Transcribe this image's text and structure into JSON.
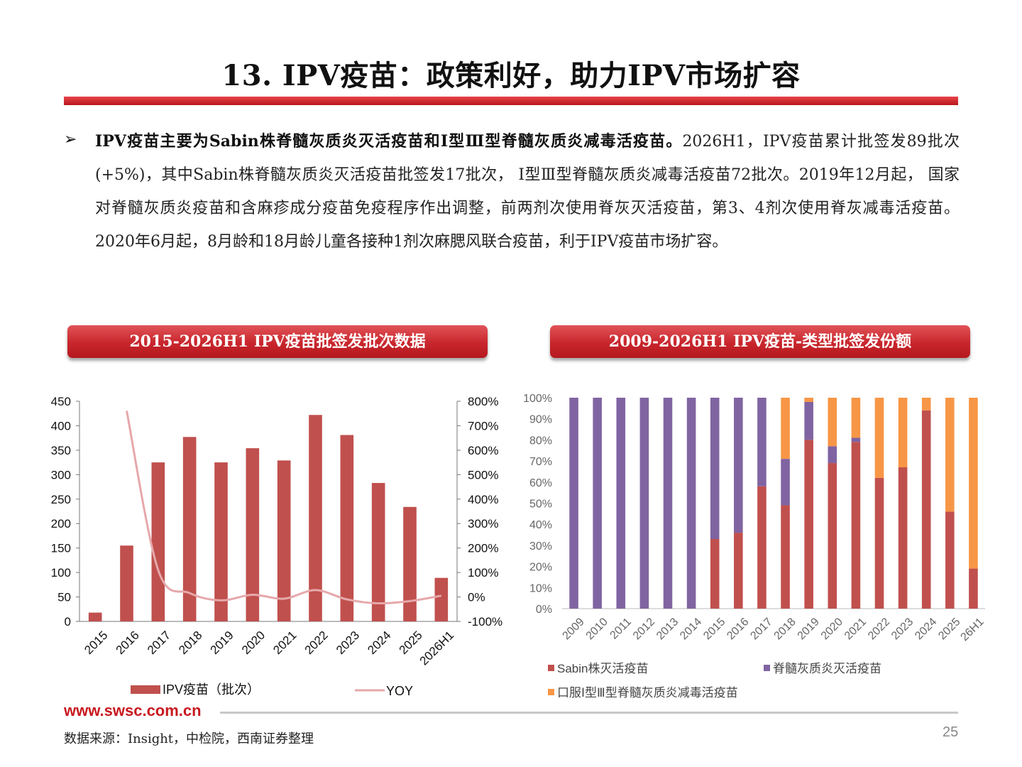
{
  "title": "13. IPV疫苗：政策利好，助力IPV市场扩容",
  "bullet": {
    "bold": "IPV疫苗主要为Sabin株脊髓灰质炎灭活疫苗和Ⅰ型Ⅲ型脊髓灰质炎减毒活疫苗。",
    "text": "2026H1，IPV疫苗累计批签发89批次(+5%)，其中Sabin株脊髓灰质炎灭活疫苗批签发17批次， Ⅰ型Ⅲ型脊髓灰质炎减毒活疫苗72批次。2019年12月起， 国家对脊髓灰质炎疫苗和含麻疹成分疫苗免疫程序作出调整，前两剂次使用脊灰灭活疫苗，第3、4剂次使用脊灰减毒活疫苗。2020年6月起，8月龄和18月龄儿童各接种1剂次麻腮风联合疫苗，利于IPV疫苗市场扩容。"
  },
  "left_header": "2015-2026H1 IPV疫苗批签发批次数据",
  "right_header": "2009-2026H1 IPV疫苗-类型批签发份额",
  "chart_data": [
    {
      "type": "bar",
      "categories": [
        "2015",
        "2016",
        "2017",
        "2018",
        "2019",
        "2020",
        "2021",
        "2022",
        "2023",
        "2024",
        "2025",
        "2026H1"
      ],
      "series": [
        {
          "name": "IPV疫苗（批次）",
          "type": "bar",
          "axis": "left",
          "color": "#c0504d",
          "values": [
            18,
            155,
            325,
            377,
            325,
            354,
            329,
            422,
            381,
            283,
            234,
            89
          ]
        },
        {
          "name": "YOY",
          "type": "line",
          "axis": "right",
          "color": "#e6a8ab",
          "values": [
            null,
            761,
            110,
            16,
            -14,
            9,
            -7,
            28,
            -10,
            -26,
            -17,
            5
          ]
        }
      ],
      "ylim_left": [
        0,
        450
      ],
      "yticks_left": [
        "0",
        "50",
        "100",
        "150",
        "200",
        "250",
        "300",
        "350",
        "400",
        "450"
      ],
      "ylim_right": [
        -100,
        800
      ],
      "yticks_right": [
        "-100%",
        "0%",
        "100%",
        "200%",
        "300%",
        "400%",
        "500%",
        "600%",
        "700%",
        "800%"
      ],
      "legend_position": "bottom"
    },
    {
      "type": "bar",
      "stacked": true,
      "categories": [
        "2009",
        "2010",
        "2011",
        "2012",
        "2013",
        "2014",
        "2015",
        "2016",
        "2017",
        "2018",
        "2019",
        "2020",
        "2021",
        "2022",
        "2023",
        "2024",
        "2025",
        "26H1"
      ],
      "series": [
        {
          "name": "Sabin株灭活疫苗",
          "color": "#c0504d",
          "values": [
            0,
            0,
            0,
            0,
            0,
            0,
            33,
            36,
            58,
            49,
            80,
            69,
            79,
            62,
            67,
            94,
            46,
            19
          ]
        },
        {
          "name": "脊髓灰质炎灭活疫苗",
          "color": "#8064a2",
          "values": [
            100,
            100,
            100,
            100,
            100,
            100,
            67,
            64,
            42,
            22,
            18,
            8,
            2,
            0,
            0,
            0,
            0,
            0
          ]
        },
        {
          "name": "口服Ⅰ型Ⅲ型脊髓灰质炎减毒活疫苗",
          "color": "#f79646",
          "values": [
            0,
            0,
            0,
            0,
            0,
            0,
            0,
            0,
            0,
            29,
            2,
            23,
            19,
            38,
            33,
            6,
            54,
            81
          ]
        }
      ],
      "ylim": [
        0,
        100
      ],
      "yticks": [
        "0%",
        "10%",
        "20%",
        "30%",
        "40%",
        "50%",
        "60%",
        "70%",
        "80%",
        "90%",
        "100%"
      ],
      "legend_position": "bottom"
    }
  ],
  "footer": {
    "site": "www.swsc.com.cn",
    "source": "数据来源：Insight，中检院，西南证券整理",
    "page": "25"
  }
}
